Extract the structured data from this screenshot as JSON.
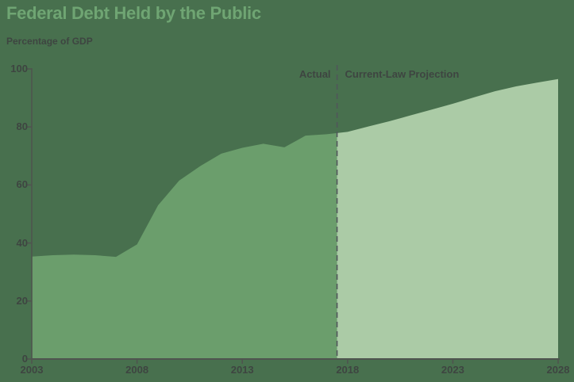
{
  "colors": {
    "background": "#48704E",
    "actual_fill": "#6B9E6C",
    "projection_fill": "#ABCBA6",
    "title": "#6FA573",
    "text": "#3E4541",
    "axis": "#4F544F",
    "divider": "#50565A"
  },
  "chart_data": {
    "type": "area",
    "title": "Federal Debt Held by the Public",
    "subtitle": "Percentage of GDP",
    "ylabel": "Percentage of GDP",
    "xlim": [
      2003,
      2028
    ],
    "ylim": [
      0,
      100
    ],
    "x_ticks": [
      2003,
      2008,
      2013,
      2018,
      2023,
      2028
    ],
    "y_ticks": [
      0,
      20,
      40,
      60,
      80,
      100
    ],
    "grid": "off",
    "divider_year": 2017.5,
    "annotations": {
      "actual": "Actual",
      "projection": "Current-Law Projection"
    },
    "series": [
      {
        "name": "Actual",
        "x": [
          2003,
          2004,
          2005,
          2006,
          2007,
          2008,
          2009,
          2010,
          2011,
          2012,
          2013,
          2014,
          2015,
          2016,
          2017
        ],
        "values": [
          35.3,
          35.8,
          36.0,
          35.8,
          35.2,
          39.5,
          53.0,
          61.5,
          66.5,
          70.8,
          72.8,
          74.2,
          73.0,
          77.0,
          77.5
        ]
      },
      {
        "name": "Current-Law Projection",
        "x": [
          2018,
          2019,
          2020,
          2021,
          2022,
          2023,
          2024,
          2025,
          2026,
          2027,
          2028
        ],
        "values": [
          78.3,
          80.2,
          82.0,
          84.0,
          86.0,
          88.0,
          90.2,
          92.3,
          94.0,
          95.3,
          96.5
        ]
      }
    ]
  }
}
